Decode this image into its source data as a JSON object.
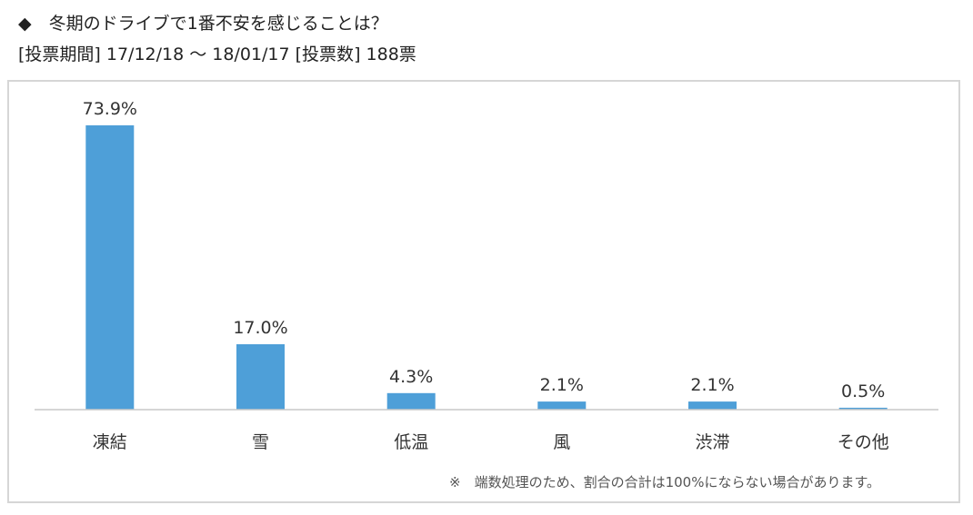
{
  "header": {
    "title": "◆　冬期のドライブで1番不安を感じることは？",
    "subtitle": "[投票期間] 17/12/18 ～ 18/01/17 [投票数] 188票"
  },
  "footnote": "※　端数処理のため、割合の合計は100%にならない場合があります。",
  "colors": {
    "bar": "#4e9fd8",
    "axis": "#c8c8c8",
    "frame": "#d6d6d6"
  },
  "chart_data": {
    "type": "bar",
    "categories": [
      "凍結",
      "雪",
      "低温",
      "風",
      "渋滞",
      "その他"
    ],
    "values": [
      73.9,
      17.0,
      4.3,
      2.1,
      2.1,
      0.5
    ],
    "data_labels": [
      "73.9%",
      "17.0%",
      "4.3%",
      "2.1%",
      "2.1%",
      "0.5%"
    ],
    "unit": "%",
    "title": "",
    "xlabel": "",
    "ylabel": "",
    "ylim": [
      0,
      73.9
    ],
    "grid": false,
    "legend": "none"
  }
}
